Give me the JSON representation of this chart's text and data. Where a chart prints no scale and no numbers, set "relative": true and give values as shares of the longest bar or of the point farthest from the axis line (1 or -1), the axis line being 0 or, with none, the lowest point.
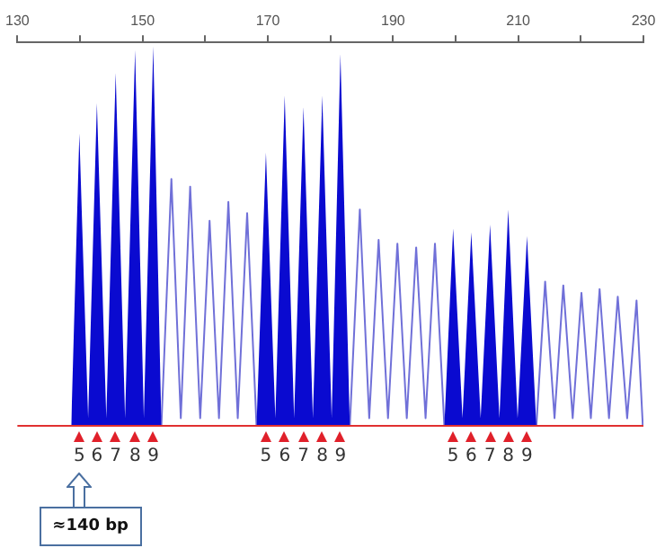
{
  "chart_data": {
    "type": "line",
    "relative": true,
    "xlim": [
      130,
      230
    ],
    "xticks": [
      130,
      {
        "value": 140,
        "label": null
      },
      150,
      {
        "value": 160,
        "label": null
      },
      170,
      {
        "value": 180,
        "label": null
      },
      190,
      {
        "value": 200,
        "label": null
      },
      210,
      {
        "value": 220,
        "label": null
      },
      230
    ],
    "series": [
      {
        "type": "area",
        "color": "#0a0ad0",
        "x": [
          138.6,
          139.9,
          141.3,
          142.7,
          144.2,
          145.7,
          147.2,
          148.8,
          150.2,
          151.7,
          153.0,
          160,
          168.2,
          169.7,
          171.2,
          172.7,
          174.2,
          175.7,
          177.2,
          178.7,
          180.2,
          181.6,
          183.1,
          190,
          198.2,
          199.6,
          201.1,
          202.5,
          204.0,
          205.5,
          207.0,
          208.4,
          209.9,
          211.4,
          212.9
        ],
        "values": [
          0,
          0.77,
          0.02,
          0.85,
          0.02,
          0.93,
          0.02,
          0.99,
          0.02,
          1,
          0,
          null,
          0,
          0.72,
          0.02,
          0.87,
          0.02,
          0.84,
          0.02,
          0.87,
          0.02,
          0.98,
          0,
          null,
          0,
          0.52,
          0.02,
          0.51,
          0.02,
          0.53,
          0.02,
          0.57,
          0.02,
          0.5,
          0
        ]
      },
      {
        "type": "line",
        "color": "#7070d8",
        "x": [
          153.0,
          154.6,
          156.1,
          157.6,
          159.2,
          160.7,
          162.2,
          163.7,
          165.2,
          166.7,
          168.2,
          175,
          183.1,
          184.7,
          186.2,
          187.7,
          189.2,
          190.7,
          192.2,
          193.7,
          195.2,
          196.7,
          198.2,
          205,
          212.9,
          214.3,
          215.8,
          217.2,
          218.7,
          220.1,
          221.6,
          223.0,
          224.5,
          225.9,
          227.4,
          228.9,
          229.9
        ],
        "values": [
          0,
          0.65,
          0.02,
          0.63,
          0.02,
          0.54,
          0.02,
          0.59,
          0.02,
          0.56,
          0,
          null,
          0,
          0.57,
          0.02,
          0.49,
          0.02,
          0.48,
          0.02,
          0.47,
          0.02,
          0.48,
          0,
          null,
          0,
          0.38,
          0.02,
          0.37,
          0.02,
          0.35,
          0.02,
          0.36,
          0.02,
          0.34,
          0.02,
          0.33,
          0
        ]
      }
    ],
    "ref_lines": [
      {
        "axis": "y",
        "value": 0,
        "color": "#e03030"
      }
    ],
    "annotations": [
      {
        "text": "5",
        "x": 139.9,
        "y": 0
      },
      {
        "text": "6",
        "x": 142.7,
        "y": 0
      },
      {
        "text": "7",
        "x": 145.7,
        "y": 0
      },
      {
        "text": "8",
        "x": 148.8,
        "y": 0
      },
      {
        "text": "9",
        "x": 151.7,
        "y": 0
      },
      {
        "text": "5",
        "x": 169.7,
        "y": 0
      },
      {
        "text": "6",
        "x": 172.7,
        "y": 0
      },
      {
        "text": "7",
        "x": 175.7,
        "y": 0
      },
      {
        "text": "8",
        "x": 178.7,
        "y": 0
      },
      {
        "text": "9",
        "x": 181.6,
        "y": 0
      },
      {
        "text": "5",
        "x": 199.6,
        "y": 0
      },
      {
        "text": "6",
        "x": 202.5,
        "y": 0
      },
      {
        "text": "7",
        "x": 205.5,
        "y": 0
      },
      {
        "text": "8",
        "x": 208.4,
        "y": 0
      },
      {
        "text": "9",
        "x": 211.4,
        "y": 0
      },
      "≈140 bp"
    ],
    "grid": false,
    "legend": false
  }
}
